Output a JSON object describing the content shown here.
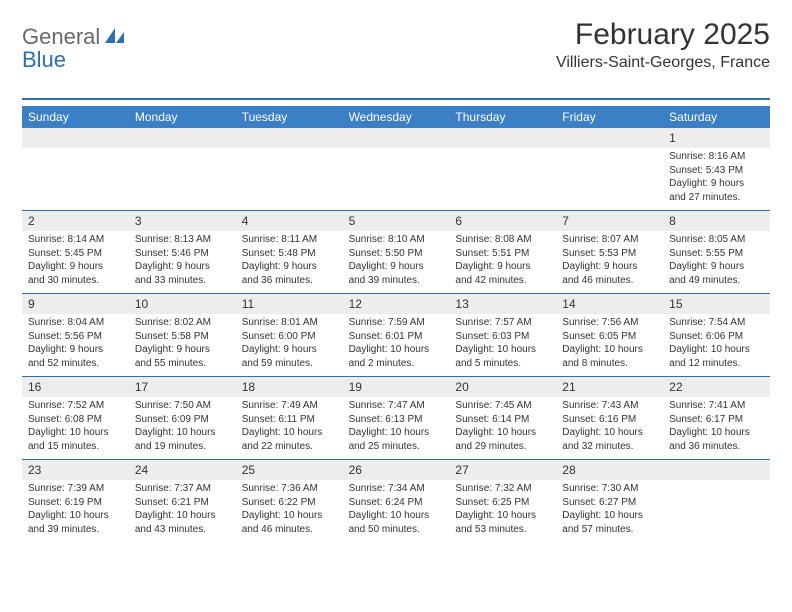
{
  "brand": {
    "part1": "General",
    "part2": "Blue"
  },
  "title": "February 2025",
  "location": "Villiers-Saint-Georges, France",
  "colors": {
    "header_bg": "#3b7fc4",
    "header_text": "#ffffff",
    "rule": "#2c6fb5",
    "daynum_bg": "#ededed",
    "text": "#333333",
    "logo_gray": "#6a6a6a",
    "logo_blue": "#2c6fb5",
    "page_bg": "#ffffff"
  },
  "typography": {
    "title_fontsize": 30,
    "location_fontsize": 16,
    "dayhead_fontsize": 12,
    "daynum_fontsize": 12,
    "body_fontsize": 10
  },
  "day_names": [
    "Sunday",
    "Monday",
    "Tuesday",
    "Wednesday",
    "Thursday",
    "Friday",
    "Saturday"
  ],
  "weeks": [
    {
      "nums": [
        "",
        "",
        "",
        "",
        "",
        "",
        "1"
      ],
      "cells": [
        {},
        {},
        {},
        {},
        {},
        {},
        {
          "sunrise": "Sunrise: 8:16 AM",
          "sunset": "Sunset: 5:43 PM",
          "day1": "Daylight: 9 hours",
          "day2": "and 27 minutes."
        }
      ]
    },
    {
      "nums": [
        "2",
        "3",
        "4",
        "5",
        "6",
        "7",
        "8"
      ],
      "cells": [
        {
          "sunrise": "Sunrise: 8:14 AM",
          "sunset": "Sunset: 5:45 PM",
          "day1": "Daylight: 9 hours",
          "day2": "and 30 minutes."
        },
        {
          "sunrise": "Sunrise: 8:13 AM",
          "sunset": "Sunset: 5:46 PM",
          "day1": "Daylight: 9 hours",
          "day2": "and 33 minutes."
        },
        {
          "sunrise": "Sunrise: 8:11 AM",
          "sunset": "Sunset: 5:48 PM",
          "day1": "Daylight: 9 hours",
          "day2": "and 36 minutes."
        },
        {
          "sunrise": "Sunrise: 8:10 AM",
          "sunset": "Sunset: 5:50 PM",
          "day1": "Daylight: 9 hours",
          "day2": "and 39 minutes."
        },
        {
          "sunrise": "Sunrise: 8:08 AM",
          "sunset": "Sunset: 5:51 PM",
          "day1": "Daylight: 9 hours",
          "day2": "and 42 minutes."
        },
        {
          "sunrise": "Sunrise: 8:07 AM",
          "sunset": "Sunset: 5:53 PM",
          "day1": "Daylight: 9 hours",
          "day2": "and 46 minutes."
        },
        {
          "sunrise": "Sunrise: 8:05 AM",
          "sunset": "Sunset: 5:55 PM",
          "day1": "Daylight: 9 hours",
          "day2": "and 49 minutes."
        }
      ]
    },
    {
      "nums": [
        "9",
        "10",
        "11",
        "12",
        "13",
        "14",
        "15"
      ],
      "cells": [
        {
          "sunrise": "Sunrise: 8:04 AM",
          "sunset": "Sunset: 5:56 PM",
          "day1": "Daylight: 9 hours",
          "day2": "and 52 minutes."
        },
        {
          "sunrise": "Sunrise: 8:02 AM",
          "sunset": "Sunset: 5:58 PM",
          "day1": "Daylight: 9 hours",
          "day2": "and 55 minutes."
        },
        {
          "sunrise": "Sunrise: 8:01 AM",
          "sunset": "Sunset: 6:00 PM",
          "day1": "Daylight: 9 hours",
          "day2": "and 59 minutes."
        },
        {
          "sunrise": "Sunrise: 7:59 AM",
          "sunset": "Sunset: 6:01 PM",
          "day1": "Daylight: 10 hours",
          "day2": "and 2 minutes."
        },
        {
          "sunrise": "Sunrise: 7:57 AM",
          "sunset": "Sunset: 6:03 PM",
          "day1": "Daylight: 10 hours",
          "day2": "and 5 minutes."
        },
        {
          "sunrise": "Sunrise: 7:56 AM",
          "sunset": "Sunset: 6:05 PM",
          "day1": "Daylight: 10 hours",
          "day2": "and 8 minutes."
        },
        {
          "sunrise": "Sunrise: 7:54 AM",
          "sunset": "Sunset: 6:06 PM",
          "day1": "Daylight: 10 hours",
          "day2": "and 12 minutes."
        }
      ]
    },
    {
      "nums": [
        "16",
        "17",
        "18",
        "19",
        "20",
        "21",
        "22"
      ],
      "cells": [
        {
          "sunrise": "Sunrise: 7:52 AM",
          "sunset": "Sunset: 6:08 PM",
          "day1": "Daylight: 10 hours",
          "day2": "and 15 minutes."
        },
        {
          "sunrise": "Sunrise: 7:50 AM",
          "sunset": "Sunset: 6:09 PM",
          "day1": "Daylight: 10 hours",
          "day2": "and 19 minutes."
        },
        {
          "sunrise": "Sunrise: 7:49 AM",
          "sunset": "Sunset: 6:11 PM",
          "day1": "Daylight: 10 hours",
          "day2": "and 22 minutes."
        },
        {
          "sunrise": "Sunrise: 7:47 AM",
          "sunset": "Sunset: 6:13 PM",
          "day1": "Daylight: 10 hours",
          "day2": "and 25 minutes."
        },
        {
          "sunrise": "Sunrise: 7:45 AM",
          "sunset": "Sunset: 6:14 PM",
          "day1": "Daylight: 10 hours",
          "day2": "and 29 minutes."
        },
        {
          "sunrise": "Sunrise: 7:43 AM",
          "sunset": "Sunset: 6:16 PM",
          "day1": "Daylight: 10 hours",
          "day2": "and 32 minutes."
        },
        {
          "sunrise": "Sunrise: 7:41 AM",
          "sunset": "Sunset: 6:17 PM",
          "day1": "Daylight: 10 hours",
          "day2": "and 36 minutes."
        }
      ]
    },
    {
      "nums": [
        "23",
        "24",
        "25",
        "26",
        "27",
        "28",
        ""
      ],
      "cells": [
        {
          "sunrise": "Sunrise: 7:39 AM",
          "sunset": "Sunset: 6:19 PM",
          "day1": "Daylight: 10 hours",
          "day2": "and 39 minutes."
        },
        {
          "sunrise": "Sunrise: 7:37 AM",
          "sunset": "Sunset: 6:21 PM",
          "day1": "Daylight: 10 hours",
          "day2": "and 43 minutes."
        },
        {
          "sunrise": "Sunrise: 7:36 AM",
          "sunset": "Sunset: 6:22 PM",
          "day1": "Daylight: 10 hours",
          "day2": "and 46 minutes."
        },
        {
          "sunrise": "Sunrise: 7:34 AM",
          "sunset": "Sunset: 6:24 PM",
          "day1": "Daylight: 10 hours",
          "day2": "and 50 minutes."
        },
        {
          "sunrise": "Sunrise: 7:32 AM",
          "sunset": "Sunset: 6:25 PM",
          "day1": "Daylight: 10 hours",
          "day2": "and 53 minutes."
        },
        {
          "sunrise": "Sunrise: 7:30 AM",
          "sunset": "Sunset: 6:27 PM",
          "day1": "Daylight: 10 hours",
          "day2": "and 57 minutes."
        },
        {}
      ]
    }
  ]
}
